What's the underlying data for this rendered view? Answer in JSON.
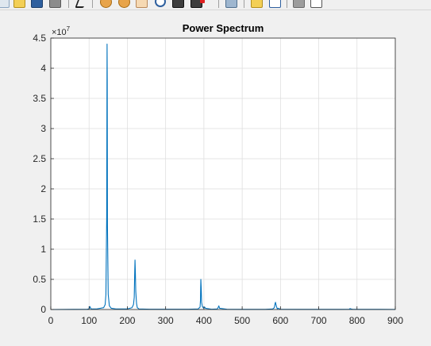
{
  "toolbar": {
    "buttons": [
      {
        "icon": "new-figure-icon"
      },
      {
        "icon": "open-file-icon"
      },
      {
        "icon": "save-icon"
      },
      {
        "icon": "print-icon"
      },
      {
        "icon": "edit-plot-arrow-icon"
      },
      {
        "icon": "zoom-in-icon"
      },
      {
        "icon": "zoom-out-icon"
      },
      {
        "icon": "pan-hand-icon"
      },
      {
        "icon": "rotate-3d-icon"
      },
      {
        "icon": "data-cursor-icon"
      },
      {
        "icon": "brush-icon"
      },
      {
        "icon": "link-plot-icon"
      },
      {
        "icon": "insert-colorbar-icon"
      },
      {
        "icon": "insert-legend-icon"
      },
      {
        "icon": "hide-plot-tools-icon"
      },
      {
        "icon": "show-plot-tools-icon"
      }
    ]
  },
  "chart_data": {
    "type": "line",
    "title": "Power Spectrum",
    "xlabel": "",
    "ylabel": "",
    "exponent_label": "×10",
    "exponent_power": "7",
    "xlim": [
      0,
      900
    ],
    "ylim": [
      0,
      4.5
    ],
    "xticks": [
      "0",
      "100",
      "200",
      "300",
      "400",
      "500",
      "600",
      "700",
      "800",
      "900"
    ],
    "yticks": [
      "0",
      "0.5",
      "1",
      "1.5",
      "2",
      "2.5",
      "3",
      "3.5",
      "4",
      "4.5"
    ],
    "grid": true,
    "series": [
      {
        "color": "#0072bd",
        "x": [
          0,
          60,
          95,
          100,
          102,
          105,
          120,
          138,
          142,
          144,
          146,
          146.5,
          147,
          147.5,
          148,
          150,
          153,
          158,
          170,
          200,
          212,
          216,
          218,
          219,
          220,
          221,
          222,
          224,
          226,
          230,
          260,
          300,
          360,
          385,
          390,
          391,
          392,
          393,
          394,
          396,
          398,
          400,
          402,
          404,
          420,
          435,
          437,
          439,
          441,
          460,
          500,
          560,
          580,
          584,
          586,
          587,
          588,
          590,
          592,
          594,
          600,
          650,
          700,
          760,
          780,
          782,
          784,
          788,
          800,
          860,
          900
        ],
        "y": [
          0,
          0.003,
          0.005,
          0.01,
          0.05,
          0.01,
          0.01,
          0.03,
          0.08,
          0.25,
          1.5,
          2.9,
          4.4,
          3.8,
          1.4,
          0.25,
          0.06,
          0.02,
          0.01,
          0.01,
          0.03,
          0.08,
          0.2,
          0.55,
          0.82,
          0.6,
          0.3,
          0.1,
          0.03,
          0.01,
          0.005,
          0.005,
          0.005,
          0.01,
          0.04,
          0.15,
          0.5,
          0.35,
          0.12,
          0.05,
          0.03,
          0.02,
          0.04,
          0.02,
          0.005,
          0.01,
          0.03,
          0.06,
          0.02,
          0.005,
          0.003,
          0.003,
          0.01,
          0.03,
          0.1,
          0.12,
          0.09,
          0.04,
          0.01,
          0.02,
          0.005,
          0.003,
          0.003,
          0.003,
          0.005,
          0.015,
          0.01,
          0.004,
          0.002,
          0.002,
          0.001
        ]
      }
    ]
  }
}
